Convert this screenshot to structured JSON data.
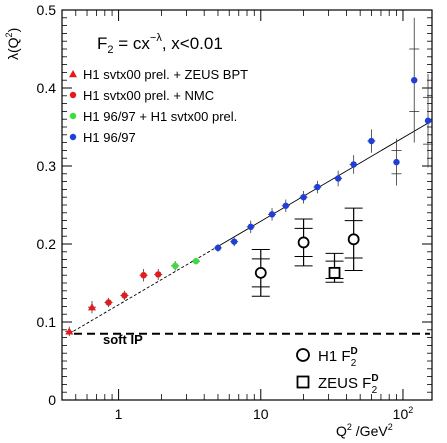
{
  "chart_data": {
    "type": "scatter",
    "title": "F₂ = cx^−λ,  x<0.01",
    "title_parts": {
      "lhs": "F",
      "sub": "2",
      "mid": " = cx",
      "sup": "−λ",
      "rhs": ",  x<0.01"
    },
    "xlabel": "Q² /GeV²",
    "xlabel_parts": {
      "q": "Q",
      "q_sup": "2",
      "mid": " /GeV",
      "gev_sup": "2"
    },
    "ylabel": "λ(Q²)",
    "ylabel_parts": {
      "pre": "λ(Q",
      "sup": "2",
      "post": ")"
    },
    "x_scale": "log",
    "xlim": [
      0.4,
      160
    ],
    "ylim": [
      0,
      0.5
    ],
    "x_ticks": [
      {
        "value": 1,
        "label": "1"
      },
      {
        "value": 10,
        "label": "10"
      },
      {
        "value": 100,
        "label": "10²",
        "base": "10",
        "exp": "2"
      }
    ],
    "y_ticks": [
      0,
      0.1,
      0.2,
      0.3,
      0.4,
      0.5
    ],
    "y_tick_labels": [
      "0",
      "0.1",
      "0.2",
      "0.3",
      "0.4",
      "0.5"
    ],
    "grid": false,
    "legend_position": "top-left",
    "series": [
      {
        "name": "H1 svtx00 prel. + ZEUS BPT",
        "marker": "triangle",
        "color": "#e41a1c",
        "points": [
          {
            "x": 0.45,
            "y": 0.088,
            "err": 0.006
          },
          {
            "x": 0.65,
            "y": 0.119,
            "err": 0.008
          }
        ]
      },
      {
        "name": "H1 svtx00 prel. + NMC",
        "marker": "circle",
        "color": "#e41a1c",
        "points": [
          {
            "x": 0.85,
            "y": 0.125,
            "err": 0.006
          },
          {
            "x": 1.1,
            "y": 0.134,
            "err": 0.006
          },
          {
            "x": 1.5,
            "y": 0.16,
            "err": 0.008
          },
          {
            "x": 1.9,
            "y": 0.161,
            "err": 0.007
          }
        ]
      },
      {
        "name": "H1 96/97 + H1 svtx00 prel.",
        "marker": "circle",
        "color": "#3ddc3d",
        "points": [
          {
            "x": 2.5,
            "y": 0.172,
            "err": 0.006
          },
          {
            "x": 3.5,
            "y": 0.178,
            "err": 0.004
          }
        ]
      },
      {
        "name": "H1 96/97",
        "marker": "circle",
        "color": "#1f3fd8",
        "points": [
          {
            "x": 5,
            "y": 0.195,
            "err": 0.005
          },
          {
            "x": 6.5,
            "y": 0.203,
            "err": 0.006
          },
          {
            "x": 8.5,
            "y": 0.222,
            "err": 0.008
          },
          {
            "x": 12,
            "y": 0.238,
            "err": 0.008
          },
          {
            "x": 15,
            "y": 0.249,
            "err": 0.008
          },
          {
            "x": 20,
            "y": 0.26,
            "err": 0.008
          },
          {
            "x": 25,
            "y": 0.273,
            "err": 0.008
          },
          {
            "x": 35,
            "y": 0.284,
            "err": 0.01
          },
          {
            "x": 45,
            "y": 0.302,
            "err": 0.012
          },
          {
            "x": 60,
            "y": 0.332,
            "err": 0.015
          },
          {
            "x": 90,
            "y": 0.305,
            "err": 0.03
          },
          {
            "x": 120,
            "y": 0.41,
            "err": 0.08
          },
          {
            "x": 150,
            "y": 0.358,
            "err": 0.06
          }
        ]
      },
      {
        "name": "H1 F₂ᴰ",
        "label_parts": {
          "base": "H1 F",
          "sub": "2",
          "sup": "D"
        },
        "marker": "open-circle",
        "color": "#000000",
        "points": [
          {
            "x": 10,
            "y": 0.163,
            "err_up": 0.03,
            "err_dn": 0.03
          },
          {
            "x": 20,
            "y": 0.202,
            "err_up": 0.03,
            "err_dn": 0.03
          },
          {
            "x": 45,
            "y": 0.206,
            "err_up": 0.04,
            "err_dn": 0.04
          }
        ]
      },
      {
        "name": "ZEUS F₂ᴰ",
        "label_parts": {
          "base": "ZEUS F",
          "sub": "2",
          "sup": "D"
        },
        "marker": "open-square",
        "color": "#000000",
        "points": [
          {
            "x": 33,
            "y": 0.163,
            "err_up": 0.025,
            "err_dn": 0.012
          }
        ]
      }
    ],
    "fit_line": {
      "x_start": 0.45,
      "x_end": 160,
      "y_start": 0.085,
      "y_end": 0.358,
      "dashed_below_x": 5
    },
    "reference_line": {
      "y": 0.085,
      "style": "dashed",
      "label": "soft IP",
      "label_parts": {
        "text": "soft ",
        "ip": "IP"
      }
    }
  }
}
